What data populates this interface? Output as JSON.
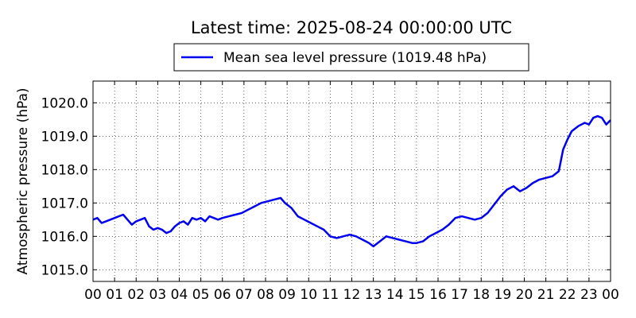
{
  "chart_data": {
    "type": "line",
    "title": "Latest time: 2025-08-24 00:00:00 UTC",
    "xlabel": "",
    "ylabel": "Atmospheric pressure (hPa)",
    "grid": true,
    "legend_position": "top-center",
    "x_tick_labels": [
      "00",
      "01",
      "02",
      "03",
      "04",
      "05",
      "06",
      "07",
      "08",
      "09",
      "10",
      "11",
      "12",
      "13",
      "14",
      "15",
      "16",
      "17",
      "18",
      "19",
      "20",
      "21",
      "22",
      "23",
      "00"
    ],
    "y_ticks": [
      1015.0,
      1016.0,
      1017.0,
      1018.0,
      1019.0,
      1020.0
    ],
    "y_tick_labels": [
      "1015.0",
      "1016.0",
      "1017.0",
      "1018.0",
      "1019.0",
      "1020.0"
    ],
    "xlim": [
      0,
      24
    ],
    "ylim": [
      1014.65,
      1020.65
    ],
    "series": [
      {
        "name": "Mean sea level pressure (1019.48 hPa)",
        "color": "#0000ee",
        "x": [
          0,
          0.2,
          0.4,
          0.6,
          0.8,
          1.0,
          1.2,
          1.4,
          1.6,
          1.8,
          2.0,
          2.2,
          2.4,
          2.6,
          2.8,
          3.0,
          3.2,
          3.4,
          3.6,
          3.8,
          4.0,
          4.2,
          4.4,
          4.6,
          4.8,
          5.0,
          5.2,
          5.4,
          5.6,
          5.8,
          6.0,
          6.3,
          6.6,
          6.9,
          7.2,
          7.5,
          7.8,
          8.1,
          8.4,
          8.7,
          8.9,
          9.2,
          9.5,
          9.8,
          10.1,
          10.4,
          10.7,
          11.0,
          11.3,
          11.6,
          11.9,
          12.2,
          12.5,
          12.8,
          13.0,
          13.3,
          13.6,
          13.9,
          14.2,
          14.5,
          14.8,
          15.0,
          15.3,
          15.6,
          15.9,
          16.2,
          16.5,
          16.8,
          17.1,
          17.4,
          17.7,
          18.0,
          18.3,
          18.6,
          18.9,
          19.2,
          19.5,
          19.8,
          20.1,
          20.4,
          20.7,
          21.0,
          21.3,
          21.6,
          21.8,
          22.0,
          22.2,
          22.5,
          22.8,
          23.0,
          23.2,
          23.4,
          23.6,
          23.8,
          24.0
        ],
        "values": [
          1016.5,
          1016.55,
          1016.4,
          1016.45,
          1016.5,
          1016.55,
          1016.6,
          1016.65,
          1016.5,
          1016.35,
          1016.45,
          1016.5,
          1016.55,
          1016.3,
          1016.2,
          1016.25,
          1016.2,
          1016.1,
          1016.15,
          1016.3,
          1016.4,
          1016.45,
          1016.35,
          1016.55,
          1016.5,
          1016.55,
          1016.45,
          1016.6,
          1016.55,
          1016.5,
          1016.55,
          1016.6,
          1016.65,
          1016.7,
          1016.8,
          1016.9,
          1017.0,
          1017.05,
          1017.1,
          1017.15,
          1017.0,
          1016.85,
          1016.6,
          1016.5,
          1016.4,
          1016.3,
          1016.2,
          1016.0,
          1015.95,
          1016.0,
          1016.05,
          1016.0,
          1015.9,
          1015.8,
          1015.7,
          1015.85,
          1016.0,
          1015.95,
          1015.9,
          1015.85,
          1015.8,
          1015.8,
          1015.85,
          1016.0,
          1016.1,
          1016.2,
          1016.35,
          1016.55,
          1016.6,
          1016.55,
          1016.5,
          1016.55,
          1016.7,
          1016.95,
          1017.2,
          1017.4,
          1017.5,
          1017.35,
          1017.45,
          1017.6,
          1017.7,
          1017.75,
          1017.8,
          1017.95,
          1018.6,
          1018.9,
          1019.15,
          1019.3,
          1019.4,
          1019.35,
          1019.55,
          1019.6,
          1019.55,
          1019.35,
          1019.48
        ]
      }
    ]
  }
}
